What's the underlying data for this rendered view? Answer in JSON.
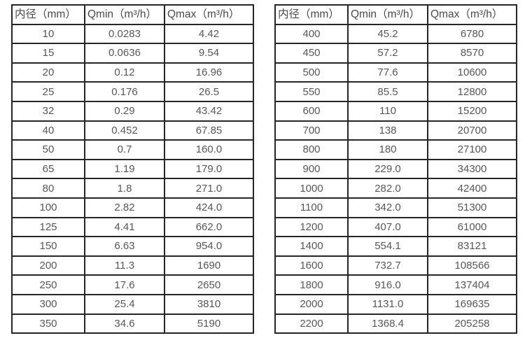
{
  "page": {
    "background_color": "#ffffff",
    "border_color": "#262626",
    "header_text_color": "#4a4a4a",
    "cell_text_color": "#575757"
  },
  "tables": [
    {
      "name": "flow-table-small-diameters",
      "headers": [
        "内径（mm）",
        "Qmin（m³/h）",
        "Qmax（m³/h）"
      ],
      "rows": [
        [
          "10",
          "0.0283",
          "4.42"
        ],
        [
          "15",
          "0.0636",
          "9.54"
        ],
        [
          "20",
          "0.12",
          "16.96"
        ],
        [
          "25",
          "0.176",
          "26.5"
        ],
        [
          "32",
          "0.29",
          "43.42"
        ],
        [
          "40",
          "0.452",
          "67.85"
        ],
        [
          "50",
          "0.7",
          "160.0"
        ],
        [
          "65",
          "1.19",
          "179.0"
        ],
        [
          "80",
          "1.8",
          "271.0"
        ],
        [
          "100",
          "2.82",
          "424.0"
        ],
        [
          "125",
          "4.41",
          "662.0"
        ],
        [
          "150",
          "6.63",
          "954.0"
        ],
        [
          "200",
          "11.3",
          "1690"
        ],
        [
          "250",
          "17.6",
          "2650"
        ],
        [
          "300",
          "25.4",
          "3810"
        ],
        [
          "350",
          "34.6",
          "5190"
        ]
      ]
    },
    {
      "name": "flow-table-large-diameters",
      "headers": [
        "内径（mm）",
        "Qmin（m³/h）",
        "Qmax（m³/h）"
      ],
      "rows": [
        [
          "400",
          "45.2",
          "6780"
        ],
        [
          "450",
          "57.2",
          "8570"
        ],
        [
          "500",
          "77.6",
          "10600"
        ],
        [
          "550",
          "85.5",
          "12800"
        ],
        [
          "600",
          "110",
          "15200"
        ],
        [
          "700",
          "138",
          "20700"
        ],
        [
          "800",
          "180",
          "27100"
        ],
        [
          "900",
          "229.0",
          "34300"
        ],
        [
          "1000",
          "282.0",
          "42400"
        ],
        [
          "1100",
          "342.0",
          "51300"
        ],
        [
          "1200",
          "407.0",
          "61000"
        ],
        [
          "1400",
          "554.1",
          "83121"
        ],
        [
          "1600",
          "732.7",
          "108566"
        ],
        [
          "1800",
          "916.0",
          "137404"
        ],
        [
          "2000",
          "1131.0",
          "169635"
        ],
        [
          "2200",
          "1368.4",
          "205258"
        ]
      ]
    }
  ]
}
